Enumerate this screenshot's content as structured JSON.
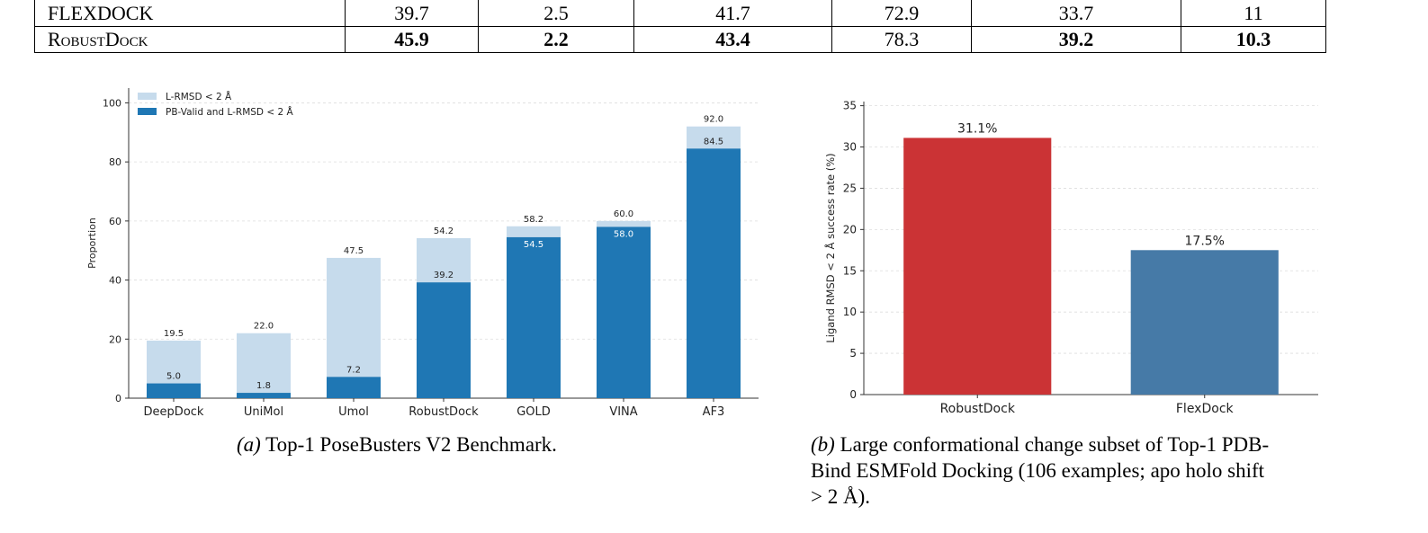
{
  "table": {
    "rows": [
      {
        "method": "FLEXDOCK",
        "values": [
          "39.7",
          "2.5",
          "41.7",
          "72.9",
          "33.7",
          "11"
        ],
        "bold": [
          false,
          false,
          false,
          false,
          false,
          false
        ],
        "smallcaps": false
      },
      {
        "method": "RobustDock",
        "values": [
          "45.9",
          "2.2",
          "43.4",
          "78.3",
          "39.2",
          "10.3"
        ],
        "bold": [
          true,
          true,
          true,
          false,
          true,
          true
        ],
        "smallcaps": true
      }
    ]
  },
  "chart_data": [
    {
      "type": "bar",
      "stacked_overlay": true,
      "categories": [
        "DeepDock",
        "UniMol",
        "Umol",
        "RobustDock",
        "GOLD",
        "VINA",
        "AF3"
      ],
      "series": [
        {
          "name": "L-RMSD $< 2\\,\\AA$",
          "display_name": "L-RMSD < 2 Å",
          "color": "#c6dbec",
          "values": [
            19.5,
            22.0,
            47.5,
            54.2,
            58.2,
            60.0,
            92.0
          ]
        },
        {
          "name": "PB-Valid and L-RMSD $< 2\\,\\AA$",
          "display_name": "PB-Valid and L-RMSD < 2 Å",
          "color": "#1f77b4",
          "values": [
            5.0,
            1.8,
            7.2,
            39.2,
            54.5,
            58.0,
            84.5
          ]
        }
      ],
      "ylabel": "Proportion",
      "xlabel": "",
      "ylim": [
        0,
        105
      ],
      "yticks": [
        0,
        20,
        40,
        60,
        80,
        100
      ],
      "grid": true,
      "legend": "top-left"
    },
    {
      "type": "bar",
      "categories": [
        "RobustDock",
        "FlexDock"
      ],
      "values": [
        31.1,
        17.5
      ],
      "value_labels": [
        "31.1%",
        "17.5%"
      ],
      "colors": [
        "#cb3335",
        "#467aa7"
      ],
      "ylabel": "Ligand RMSD < 2 Å success rate (%)",
      "xlabel": "",
      "ylim": [
        0,
        35.5
      ],
      "yticks": [
        0,
        5,
        10,
        15,
        20,
        25,
        30,
        35
      ],
      "grid": true
    }
  ],
  "captions": {
    "a_label": "(a)",
    "a_text": "Top-1 PoseBusters V2 Benchmark.",
    "b_label": "(b)",
    "b_line1": "Large conformational change subset of Top-1 PDB-",
    "b_line2": "Bind ESMFold Docking (106 examples; apo holo shift",
    "b_line3": "> 2 Å)."
  }
}
